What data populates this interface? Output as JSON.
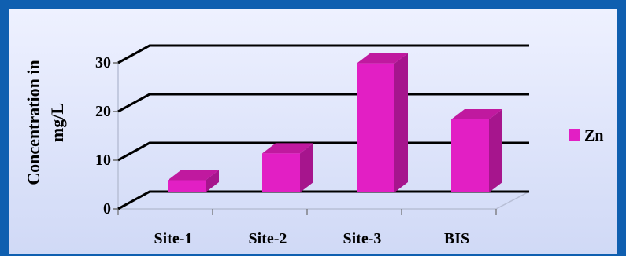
{
  "chart_data": {
    "type": "bar",
    "title": "",
    "categories": [
      "Site-1",
      "Site-2",
      "Site-3",
      "BIS"
    ],
    "series": [
      {
        "name": "Zn",
        "values": [
          2.5,
          8,
          26.5,
          15
        ]
      }
    ],
    "ylabel_line1": "Concentration in",
    "ylabel_line2": "mg/L",
    "xlabel": "",
    "ylim": [
      0,
      30
    ],
    "yticks": [
      0,
      10,
      20,
      30
    ],
    "grid": true,
    "legend": "right",
    "colors": {
      "bar_front": "#e21fc4",
      "bar_side": "#a6158d",
      "bar_top": "#c0199f",
      "grid": "#000000",
      "frame": "#0f5fb0"
    }
  }
}
